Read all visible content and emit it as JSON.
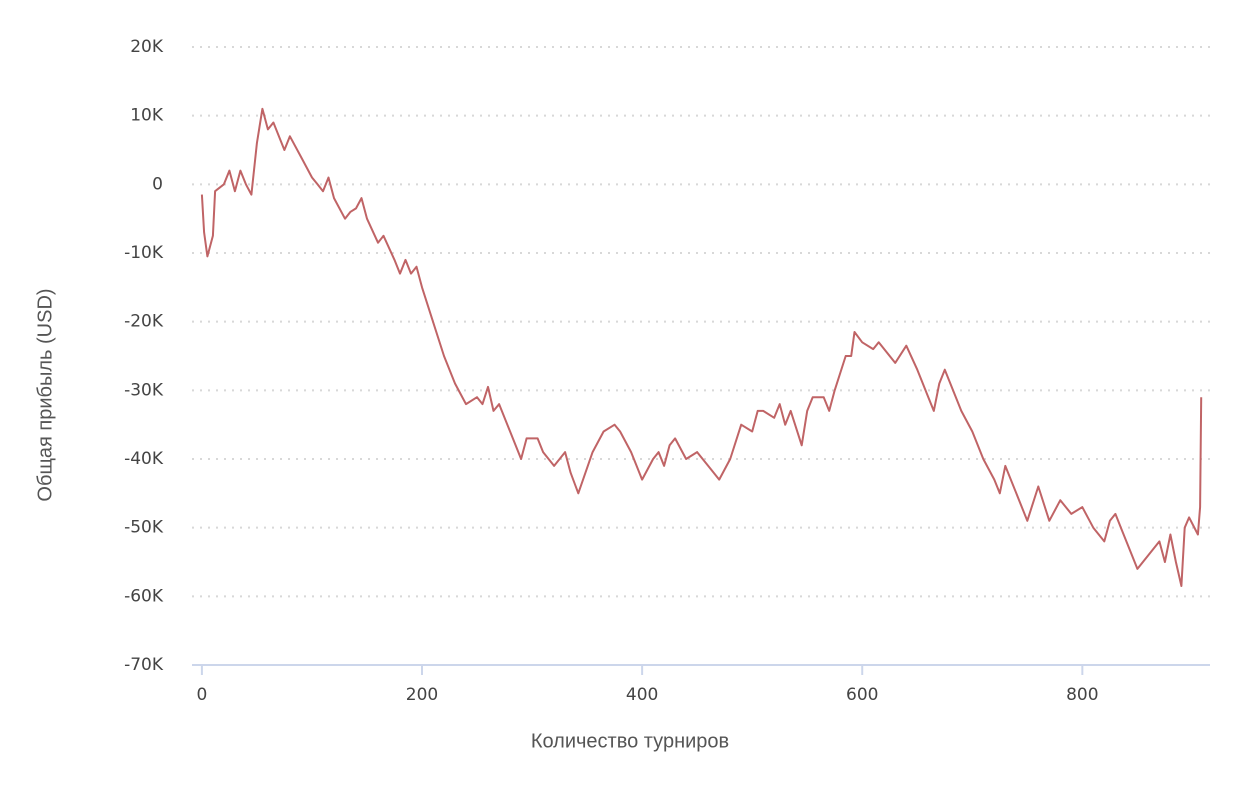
{
  "chart_data": {
    "type": "line",
    "xlabel": "Количество турниров",
    "ylabel": "Общая прибыль (USD)",
    "xlim": [
      -9,
      916
    ],
    "ylim": [
      -70000,
      20000
    ],
    "xticks": [
      0,
      200,
      400,
      600,
      800
    ],
    "yticks": [
      {
        "value": 20000,
        "label": "20K"
      },
      {
        "value": 10000,
        "label": "10K"
      },
      0,
      {
        "value": -10000,
        "label": "-10K"
      },
      {
        "value": -20000,
        "label": "-20K"
      },
      {
        "value": -30000,
        "label": "-30K"
      },
      {
        "value": -40000,
        "label": "-40K"
      },
      {
        "value": -50000,
        "label": "-50K"
      },
      {
        "value": -60000,
        "label": "-60K"
      },
      {
        "value": -70000,
        "label": "-70K"
      }
    ],
    "grid": true,
    "series": [
      {
        "color": "#c06466",
        "x": [
          0,
          2,
          5,
          10,
          12,
          20,
          25,
          30,
          35,
          40,
          45,
          50,
          55,
          60,
          65,
          70,
          75,
          80,
          90,
          100,
          105,
          110,
          115,
          120,
          130,
          135,
          140,
          145,
          150,
          160,
          165,
          175,
          180,
          185,
          190,
          195,
          200,
          210,
          220,
          230,
          240,
          250,
          255,
          260,
          265,
          270,
          280,
          290,
          295,
          305,
          310,
          320,
          330,
          335,
          342,
          355,
          365,
          375,
          380,
          390,
          400,
          410,
          415,
          420,
          425,
          430,
          440,
          450,
          460,
          470,
          480,
          490,
          500,
          505,
          510,
          520,
          525,
          530,
          535,
          545,
          550,
          555,
          565,
          570,
          575,
          585,
          590,
          593,
          600,
          610,
          615,
          630,
          640,
          650,
          660,
          665,
          670,
          675,
          690,
          700,
          710,
          720,
          725,
          730,
          740,
          750,
          760,
          770,
          780,
          790,
          800,
          810,
          820,
          825,
          830,
          835,
          845,
          850,
          860,
          870,
          875,
          880,
          885,
          890,
          893,
          897,
          905,
          907,
          908
        ],
        "values": [
          -1500,
          -7000,
          -10500,
          -7500,
          -1000,
          0,
          2000,
          -1000,
          2000,
          0,
          -1500,
          6000,
          11000,
          8000,
          9000,
          7000,
          5000,
          7000,
          4000,
          1000,
          0,
          -1000,
          1000,
          -2000,
          -5000,
          -4000,
          -3500,
          -2000,
          -5000,
          -8500,
          -7500,
          -11000,
          -13000,
          -11000,
          -13000,
          -12000,
          -15000,
          -20000,
          -25000,
          -29000,
          -32000,
          -31000,
          -32000,
          -29500,
          -33000,
          -32000,
          -36000,
          -40000,
          -37000,
          -37000,
          -39000,
          -41000,
          -39000,
          -42000,
          -45000,
          -39000,
          -36000,
          -35000,
          -36000,
          -39000,
          -43000,
          -40000,
          -39000,
          -41000,
          -38000,
          -37000,
          -40000,
          -39000,
          -41000,
          -43000,
          -40000,
          -35000,
          -36000,
          -33000,
          -33000,
          -34000,
          -32000,
          -35000,
          -33000,
          -38000,
          -33000,
          -31000,
          -31000,
          -33000,
          -30000,
          -25000,
          -25000,
          -21500,
          -23000,
          -24000,
          -23000,
          -26000,
          -23500,
          -27000,
          -31000,
          -33000,
          -29000,
          -27000,
          -33000,
          -36000,
          -40000,
          -43000,
          -45000,
          -41000,
          -45000,
          -49000,
          -44000,
          -49000,
          -46000,
          -48000,
          -47000,
          -50000,
          -52000,
          -49000,
          -48000,
          -50000,
          -54000,
          -56000,
          -54000,
          -52000,
          -55000,
          -51000,
          -55000,
          -58500,
          -50000,
          -48500,
          -51000,
          -47000,
          -31000
        ]
      }
    ]
  }
}
